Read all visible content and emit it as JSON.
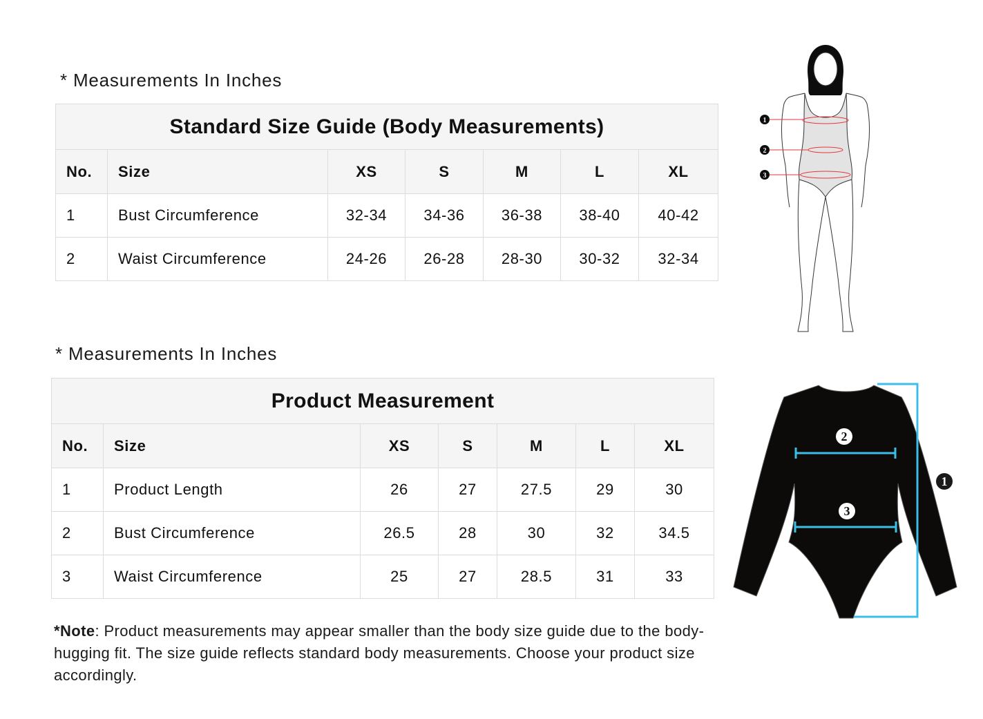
{
  "body_guide": {
    "caption": "* Measurements In Inches",
    "title": "Standard Size Guide (Body Measurements)",
    "headers": [
      "No.",
      "Size",
      "XS",
      "S",
      "M",
      "L",
      "XL"
    ],
    "rows": [
      [
        "1",
        "Bust Circumference",
        "32-34",
        "34-36",
        "36-38",
        "38-40",
        "40-42"
      ],
      [
        "2",
        "Waist Circumference",
        "24-26",
        "26-28",
        "28-30",
        "30-32",
        "32-34"
      ]
    ]
  },
  "product_guide": {
    "caption": "* Measurements In Inches",
    "title": "Product Measurement",
    "headers": [
      "No.",
      "Size",
      "XS",
      "S",
      "M",
      "L",
      "XL"
    ],
    "rows": [
      [
        "1",
        "Product Length",
        "26",
        "27",
        "27.5",
        "29",
        "30"
      ],
      [
        "2",
        "Bust Circumference",
        "26.5",
        "28",
        "30",
        "32",
        "34.5"
      ],
      [
        "3",
        "Waist Circumference",
        "25",
        "27",
        "28.5",
        "31",
        "33"
      ]
    ]
  },
  "note": {
    "label": "*Note",
    "text": ": Product measurements may appear smaller than the body size guide due to the body-hugging fit. The size guide reflects standard body measurements. Choose your product size accordingly."
  },
  "body_figure": {
    "markers": [
      "1",
      "2",
      "3"
    ],
    "line_color": "#e8343a"
  },
  "product_figure": {
    "markers": [
      "1",
      "2",
      "3"
    ],
    "line_color": "#3bbfe8",
    "garment_color": "#0d0b0a"
  }
}
